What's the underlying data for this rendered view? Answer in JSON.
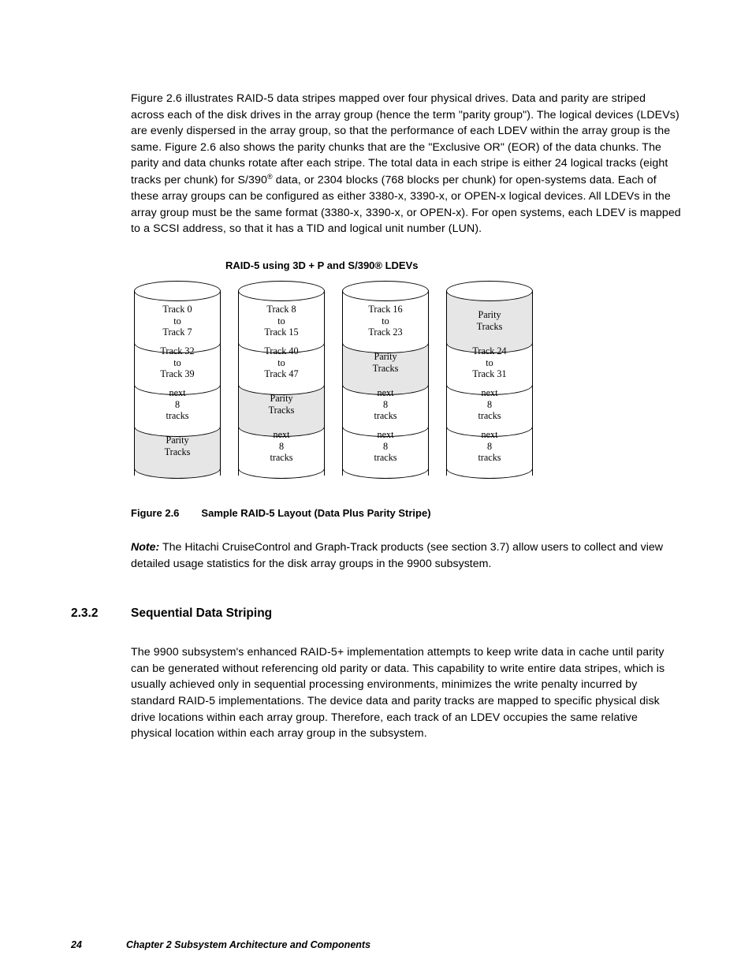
{
  "para1": "Figure 2.6 illustrates RAID-5 data stripes mapped over four physical drives. Data and parity are striped across each of the disk drives in the array group (hence the term \"parity group\"). The logical devices (LDEVs) are evenly dispersed in the array group, so that the performance of each LDEV within the array group is the same. Figure 2.6 also shows the parity chunks that are the \"Exclusive OR\" (EOR) of the data chunks. The parity and data chunks rotate after each stripe. The total data in each stripe is either 24 logical tracks (eight tracks per chunk) for S/390",
  "para1_cont": " data, or 2304 blocks (768 blocks per chunk) for open-systems data. Each of these array groups can be configured as either 3380-x, 3390-x, or OPEN-x logical devices. All LDEVs in the array group must be the same format (3380-x, 3390-x, or OPEN-x). For open systems, each LDEV is mapped to a SCSI address, so that it has a TID and logical unit number (LUN).",
  "diagram_title": "RAID-5 using 3D + P and S/390® LDEVs",
  "colors": {
    "white": "#ffffff",
    "grey": "#e6e6e6",
    "border": "#000000"
  },
  "cylinders": [
    {
      "segments": [
        {
          "lines": [
            "Track 0",
            "to",
            "Track 7"
          ],
          "shade": "white"
        },
        {
          "lines": [
            "Track 32",
            "to",
            "Track 39"
          ],
          "shade": "white"
        },
        {
          "lines": [
            "next",
            "8",
            "tracks"
          ],
          "shade": "white"
        },
        {
          "lines": [
            "Parity",
            "Tracks"
          ],
          "shade": "grey"
        }
      ]
    },
    {
      "segments": [
        {
          "lines": [
            "Track 8",
            "to",
            "Track 15"
          ],
          "shade": "white"
        },
        {
          "lines": [
            "Track 40",
            "to",
            "Track 47"
          ],
          "shade": "white"
        },
        {
          "lines": [
            "Parity",
            "Tracks"
          ],
          "shade": "grey"
        },
        {
          "lines": [
            "next",
            "8",
            "tracks"
          ],
          "shade": "white"
        }
      ]
    },
    {
      "segments": [
        {
          "lines": [
            "Track 16",
            "to",
            "Track 23"
          ],
          "shade": "white"
        },
        {
          "lines": [
            "Parity",
            "Tracks"
          ],
          "shade": "grey"
        },
        {
          "lines": [
            "next",
            "8",
            "tracks"
          ],
          "shade": "white"
        },
        {
          "lines": [
            "next",
            "8",
            "tracks"
          ],
          "shade": "white"
        }
      ]
    },
    {
      "segments": [
        {
          "lines": [
            "Parity",
            "Tracks"
          ],
          "shade": "grey"
        },
        {
          "lines": [
            "Track 24",
            "to",
            "Track 31"
          ],
          "shade": "white"
        },
        {
          "lines": [
            "next",
            "8",
            "tracks"
          ],
          "shade": "white"
        },
        {
          "lines": [
            "next",
            "8",
            "tracks"
          ],
          "shade": "white"
        }
      ]
    }
  ],
  "figure_num": "Figure 2.6",
  "figure_caption": "Sample RAID-5 Layout (Data Plus Parity Stripe)",
  "note_label": "Note:",
  "note_text": " The Hitachi CruiseControl and Graph-Track products (see section 3.7) allow users to collect and view detailed usage statistics for the disk array groups in the 9900 subsystem.",
  "section_num": "2.3.2",
  "section_title": "Sequential Data Striping",
  "para2": "The 9900 subsystem's enhanced RAID-5+ implementation attempts to keep write data in cache until parity can be generated without referencing old parity or data. This capability to write entire data stripes, which is usually achieved only in sequential processing environments, minimizes the write penalty incurred by standard RAID-5 implementations. The device data and parity tracks are mapped to specific physical disk drive locations within each array group. Therefore, each track of an LDEV occupies the same relative physical location within each array group in the subsystem.",
  "footer_page": "24",
  "footer_text": "Chapter 2    Subsystem Architecture and Components"
}
